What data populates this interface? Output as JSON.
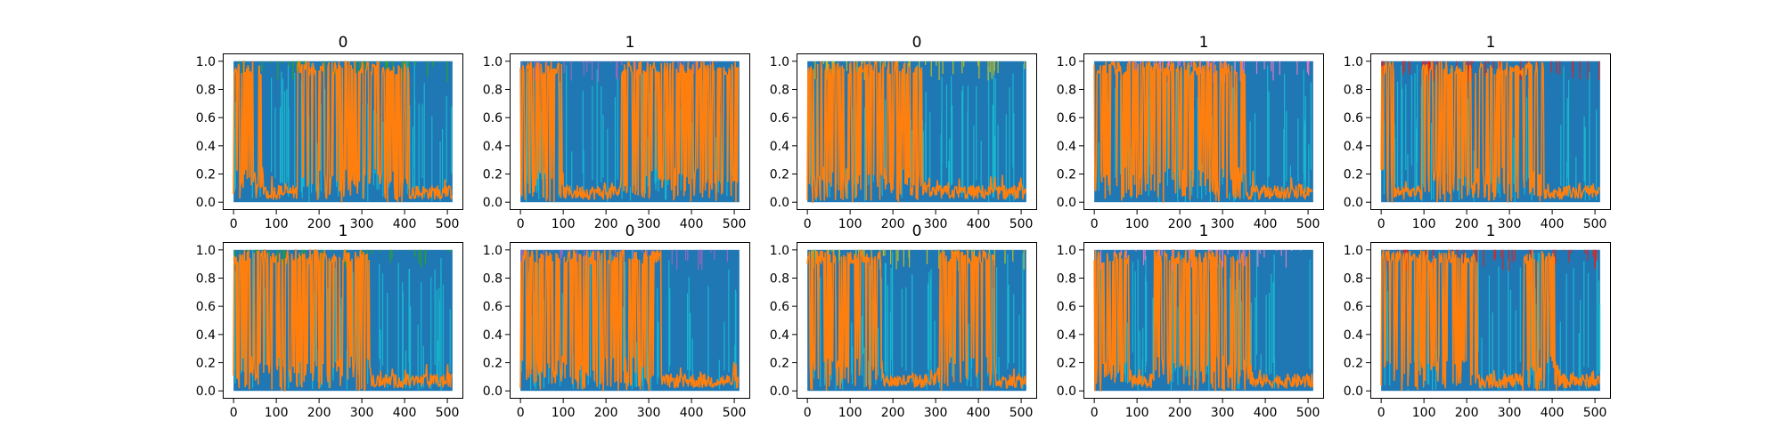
{
  "chart_data": {
    "type": "line",
    "layout": "2x5 grid of small multiples",
    "series_colors": {
      "primary": "#1f77b4",
      "highlight": "#ff7f0e",
      "noise": [
        "#17becf",
        "#2ca02c",
        "#9467bd",
        "#bcbd22",
        "#e377c2",
        "#d62728"
      ]
    },
    "xlim": [
      0,
      512
    ],
    "ylim": [
      0.0,
      1.0
    ],
    "x_ticks": [
      0,
      100,
      200,
      300,
      400,
      500
    ],
    "y_ticks": [
      "0.0",
      "0.2",
      "0.4",
      "0.6",
      "0.8",
      "1.0"
    ],
    "grid": false,
    "panels": [
      {
        "title": "0",
        "orange_segments": [
          [
            0,
            70,
            "high"
          ],
          [
            70,
            150,
            "low"
          ],
          [
            150,
            410,
            "high"
          ],
          [
            410,
            512,
            "low"
          ]
        ]
      },
      {
        "title": "1",
        "orange_segments": [
          [
            0,
            100,
            "high"
          ],
          [
            100,
            235,
            "low"
          ],
          [
            235,
            512,
            "high"
          ]
        ]
      },
      {
        "title": "0",
        "orange_segments": [
          [
            0,
            270,
            "high"
          ],
          [
            270,
            512,
            "low"
          ]
        ]
      },
      {
        "title": "1",
        "orange_segments": [
          [
            0,
            355,
            "high"
          ],
          [
            355,
            512,
            "low"
          ]
        ]
      },
      {
        "title": "1",
        "orange_segments": [
          [
            0,
            30,
            "high"
          ],
          [
            30,
            95,
            "low"
          ],
          [
            95,
            380,
            "high"
          ],
          [
            380,
            512,
            "low"
          ]
        ]
      },
      {
        "title": "1",
        "orange_segments": [
          [
            0,
            320,
            "high"
          ],
          [
            320,
            512,
            "low"
          ]
        ]
      },
      {
        "title": "0",
        "orange_segments": [
          [
            0,
            330,
            "high"
          ],
          [
            330,
            512,
            "low"
          ]
        ]
      },
      {
        "title": "0",
        "orange_segments": [
          [
            0,
            175,
            "high"
          ],
          [
            175,
            310,
            "low"
          ],
          [
            310,
            440,
            "high"
          ],
          [
            440,
            512,
            "low"
          ]
        ]
      },
      {
        "title": "1",
        "orange_segments": [
          [
            0,
            80,
            "high"
          ],
          [
            80,
            140,
            "low"
          ],
          [
            140,
            370,
            "high"
          ],
          [
            370,
            512,
            "low"
          ]
        ]
      },
      {
        "title": "1",
        "orange_segments": [
          [
            0,
            225,
            "high"
          ],
          [
            225,
            330,
            "low"
          ],
          [
            330,
            410,
            "high"
          ],
          [
            410,
            512,
            "low"
          ]
        ]
      }
    ]
  }
}
